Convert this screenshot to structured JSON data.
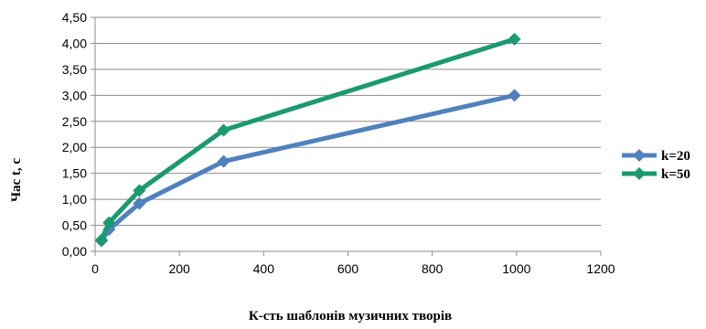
{
  "chart_data": {
    "type": "line",
    "title": "",
    "xlabel": "К-сть шаблонів музичних творів",
    "ylabel": "Час t, c",
    "xlim": [
      0,
      1200
    ],
    "ylim": [
      0,
      4.5
    ],
    "x_ticks": [
      0,
      200,
      400,
      600,
      800,
      1000,
      1200
    ],
    "x_tick_labels": [
      "0",
      "200",
      "400",
      "600",
      "800",
      "1000",
      "1200"
    ],
    "y_ticks": [
      0,
      0.5,
      1,
      1.5,
      2,
      2.5,
      3,
      3.5,
      4,
      4.5
    ],
    "y_tick_labels": [
      "0,00",
      "0,50",
      "1,00",
      "1,50",
      "2,00",
      "2,50",
      "3,00",
      "3,50",
      "4,00",
      "4,50"
    ],
    "grid": "horizontal",
    "legend_position": "right",
    "series": [
      {
        "name": "k=20",
        "color": "#4F81BD",
        "x": [
          15,
          33,
          105,
          305,
          995
        ],
        "y": [
          0.2,
          0.42,
          0.92,
          1.73,
          3.0
        ]
      },
      {
        "name": "k=50",
        "color": "#1A9A6E",
        "x": [
          15,
          33,
          105,
          305,
          995
        ],
        "y": [
          0.22,
          0.55,
          1.17,
          2.33,
          4.08
        ]
      }
    ]
  }
}
